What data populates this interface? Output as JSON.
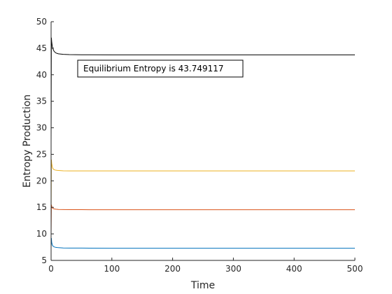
{
  "chart_data": {
    "type": "line",
    "title": "",
    "xlabel": "Time",
    "ylabel": "Entropy Production",
    "xlim": [
      0,
      500
    ],
    "ylim": [
      5,
      50
    ],
    "xticks": [
      0,
      100,
      200,
      300,
      400,
      500
    ],
    "yticks": [
      5,
      10,
      15,
      20,
      25,
      30,
      35,
      40,
      45,
      50
    ],
    "grid": false,
    "annotation": {
      "text": "Equilibrium Entropy is 43.749117"
    },
    "series": [
      {
        "color": "#0072BD",
        "x": [
          0,
          0.5,
          1,
          2,
          3,
          5,
          8,
          12,
          20,
          30,
          50,
          100,
          200,
          300,
          400,
          500
        ],
        "y": [
          7.5,
          9.2,
          8.4,
          7.9,
          7.7,
          7.55,
          7.45,
          7.4,
          7.35,
          7.33,
          7.32,
          7.3,
          7.3,
          7.3,
          7.3,
          7.3
        ]
      },
      {
        "color": "#D95319",
        "x": [
          0,
          0.5,
          1,
          2,
          3,
          5,
          8,
          12,
          20,
          30,
          50,
          100,
          200,
          300,
          400,
          500
        ],
        "y": [
          10,
          15.5,
          15.2,
          14.9,
          14.8,
          14.7,
          14.65,
          14.6,
          14.58,
          14.57,
          14.56,
          14.55,
          14.55,
          14.55,
          14.55,
          14.55
        ]
      },
      {
        "color": "#EDB120",
        "x": [
          0,
          0.5,
          1,
          2,
          3,
          5,
          8,
          12,
          20,
          30,
          50,
          100,
          200,
          300,
          400,
          500
        ],
        "y": [
          14,
          24,
          23.3,
          22.6,
          22.3,
          22.1,
          22.0,
          21.95,
          21.9,
          21.88,
          21.87,
          21.87,
          21.87,
          21.87,
          21.87,
          21.87
        ]
      },
      {
        "color": "#000000",
        "x": [
          0,
          0.5,
          1,
          2,
          3,
          5,
          8,
          12,
          20,
          30,
          50,
          100,
          200,
          300,
          400,
          500
        ],
        "y": [
          27,
          47,
          46.2,
          45.3,
          44.9,
          44.4,
          44.1,
          43.95,
          43.85,
          43.8,
          43.77,
          43.75,
          43.75,
          43.75,
          43.75,
          43.75
        ]
      }
    ]
  }
}
